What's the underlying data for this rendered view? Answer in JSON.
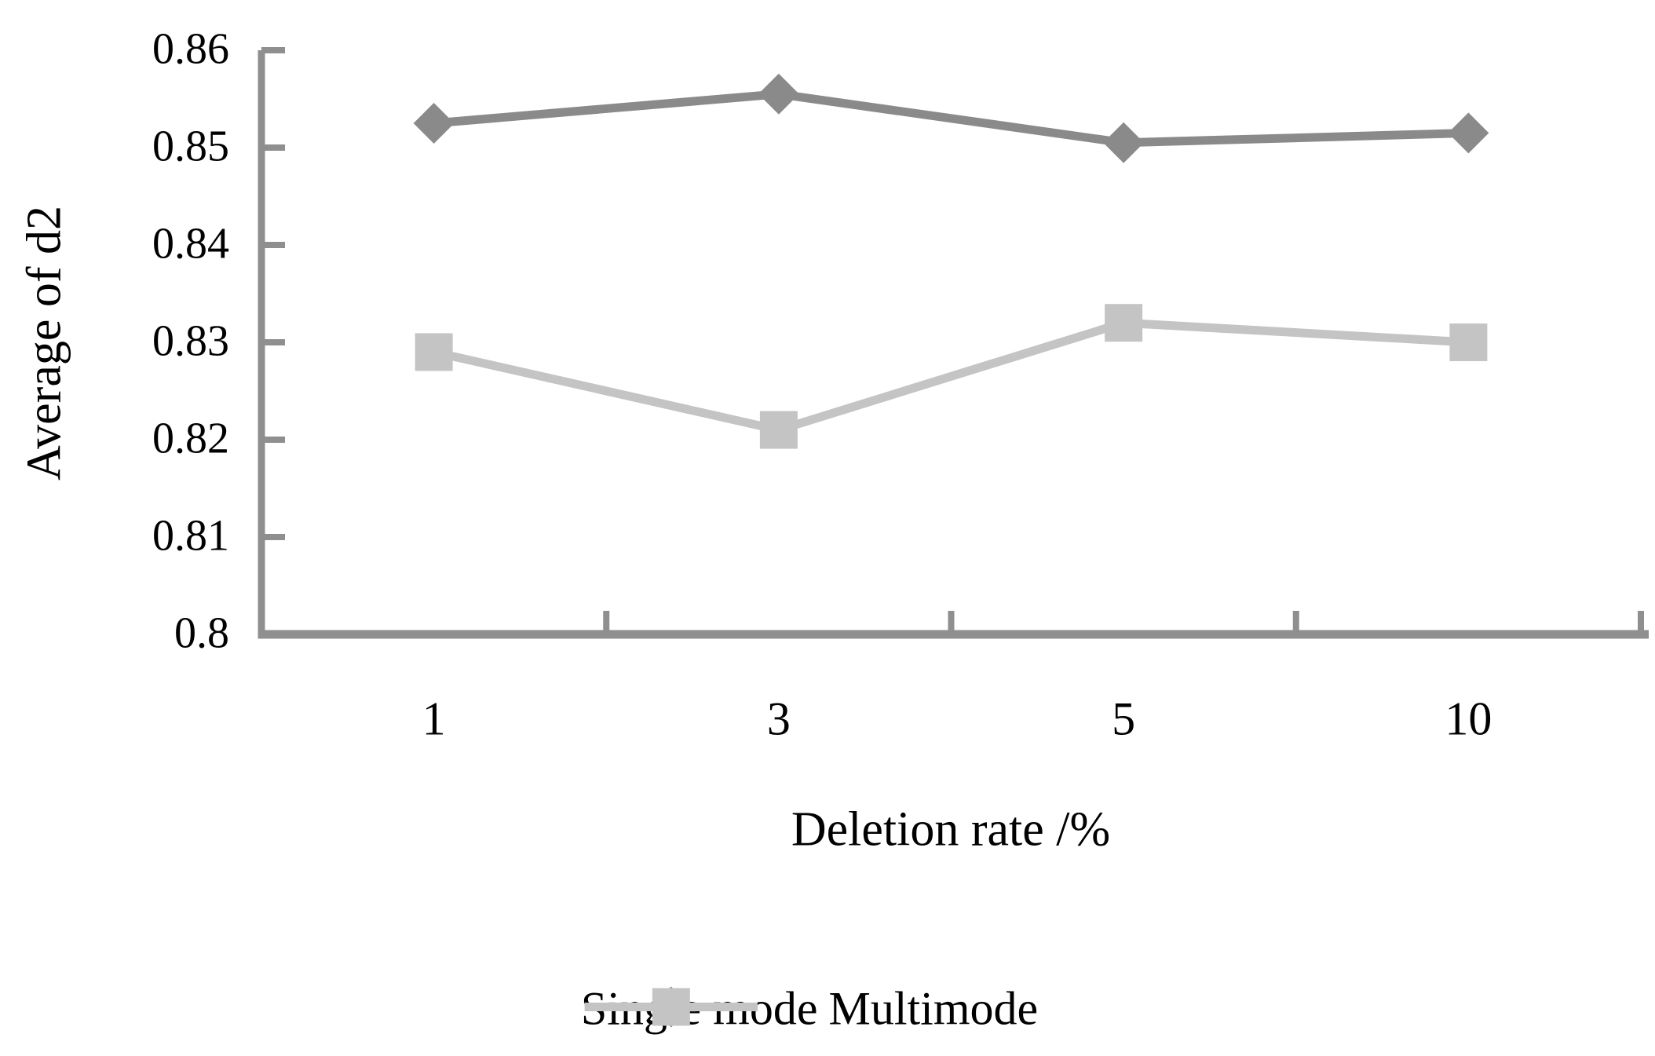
{
  "chart_data": {
    "type": "line",
    "title": "",
    "categories": [
      "1",
      "3",
      "5",
      "10"
    ],
    "series": [
      {
        "name": "Single mode",
        "marker": "diamond",
        "color": "#8a8a8a",
        "values": [
          0.8525,
          0.8555,
          0.8505,
          0.8515
        ]
      },
      {
        "name": "Multimode",
        "marker": "square",
        "color": "#c4c4c4",
        "values": [
          0.829,
          0.821,
          0.832,
          0.83
        ]
      }
    ],
    "xlabel": "Deletion rate /%",
    "ylabel": "Average of d2",
    "ylim": [
      0.8,
      0.86
    ],
    "ytick_step": 0.01,
    "ytick_labels": [
      "0.86",
      "0.85",
      "0.84",
      "0.83",
      "0.82",
      "0.81",
      "0.8"
    ],
    "axis_color": "#8f8f8f",
    "text_color": "#000000",
    "grid": false,
    "legend_position": "bottom"
  }
}
